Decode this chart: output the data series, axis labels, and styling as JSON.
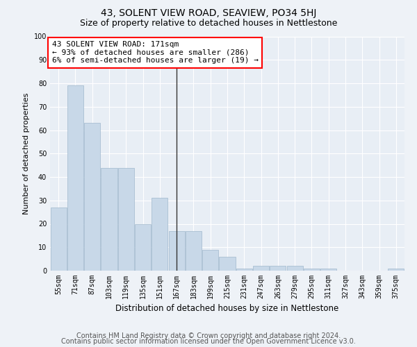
{
  "title": "43, SOLENT VIEW ROAD, SEAVIEW, PO34 5HJ",
  "subtitle": "Size of property relative to detached houses in Nettlestone",
  "xlabel": "Distribution of detached houses by size in Nettlestone",
  "ylabel": "Number of detached properties",
  "bar_categories": [
    "55sqm",
    "71sqm",
    "87sqm",
    "103sqm",
    "119sqm",
    "135sqm",
    "151sqm",
    "167sqm",
    "183sqm",
    "199sqm",
    "215sqm",
    "231sqm",
    "247sqm",
    "263sqm",
    "279sqm",
    "295sqm",
    "311sqm",
    "327sqm",
    "343sqm",
    "359sqm",
    "375sqm"
  ],
  "bar_values": [
    27,
    79,
    63,
    44,
    44,
    20,
    31,
    17,
    17,
    9,
    6,
    1,
    2,
    2,
    2,
    1,
    1,
    0,
    0,
    0,
    1
  ],
  "bar_color": "#c8d8e8",
  "bar_edgecolor": "#a0b8cc",
  "vline_index": 7,
  "vline_color": "#333333",
  "annotation_text": "43 SOLENT VIEW ROAD: 171sqm\n← 93% of detached houses are smaller (286)\n6% of semi-detached houses are larger (19) →",
  "annotation_box_color": "white",
  "annotation_box_edgecolor": "red",
  "ylim": [
    0,
    100
  ],
  "yticks": [
    0,
    10,
    20,
    30,
    40,
    50,
    60,
    70,
    80,
    90,
    100
  ],
  "footer_line1": "Contains HM Land Registry data © Crown copyright and database right 2024.",
  "footer_line2": "Contains public sector information licensed under the Open Government Licence v3.0.",
  "bg_color": "#eef2f7",
  "plot_bg_color": "#e8eef5",
  "grid_color": "#ffffff",
  "title_fontsize": 10,
  "subtitle_fontsize": 9,
  "annotation_fontsize": 8,
  "footer_fontsize": 7,
  "ylabel_fontsize": 8,
  "xlabel_fontsize": 8.5,
  "tick_fontsize": 7
}
